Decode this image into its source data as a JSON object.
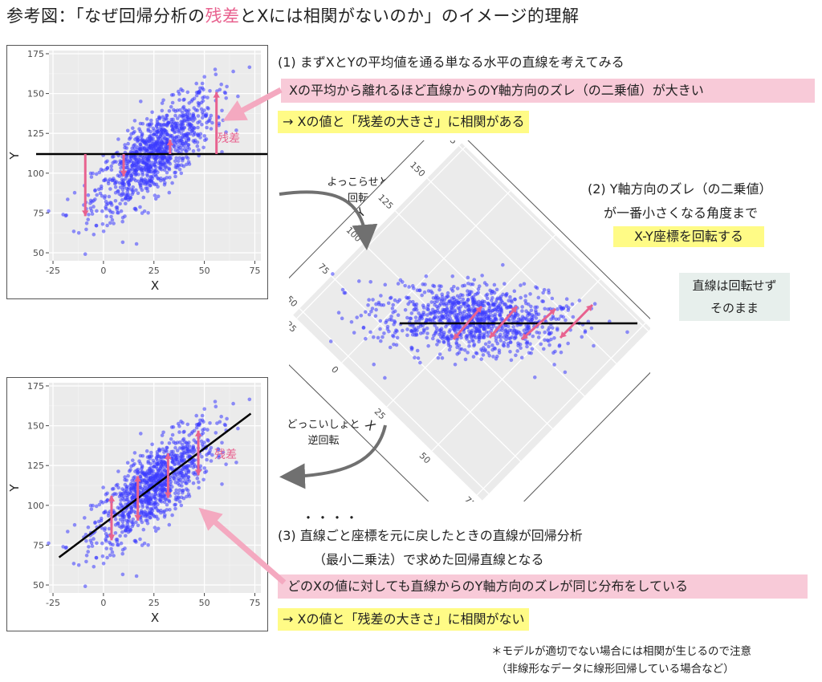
{
  "title": {
    "prefix": "参考図：「なぜ回帰分析の",
    "highlight": "残差",
    "suffix": "とXには相関がないのか」のイメージ的理解"
  },
  "step1": {
    "heading": "(1) まずXとYの平均値を通る単なる水平の直線を考えてみる",
    "pink_line": "Xの平均から離れるほど直線からのY軸方向のズレ（の二乗値）が大きい",
    "yellow_line": "→ Xの値と「残差の大きさ」に相関がある"
  },
  "arrow1_label": [
    "よっこらせと",
    "回転"
  ],
  "step2": {
    "line1": "(2) Y軸方向のズレ（の二乗値）",
    "line2": "が一番小さくなる角度まで",
    "line3": "X-Y座標を回転する"
  },
  "grey_box": [
    "直線は回転せず",
    "そのまま"
  ],
  "arrow2_label": [
    "どっこいしょと",
    "逆回転"
  ],
  "dots": "・・・・",
  "step3": {
    "line1": "(3) 直線ごと座標を元に戻したときの直線が回帰分析",
    "line2": "（最小二乗法）で求めた回帰直線となる",
    "pink_line": "どのXの値に対しても直線からのY軸方向のズレが同じ分布をしている",
    "yellow_line": "→ Xの値と「残差の大きさ」に相関がない"
  },
  "footnote": [
    "＊モデルが適切でない場合には相関が生じるので注意",
    "（非線形なデータに線形回帰している場合など）"
  ],
  "plot_labels": {
    "residual": "残差",
    "x_axis": "X",
    "y_axis": "Y"
  },
  "colors": {
    "points": "#3b3bff",
    "pink": "#e8628f",
    "pink_light": "#f8cad8",
    "yellow": "#fffb86",
    "panel_bg": "#ebebeb"
  },
  "chart_data": {
    "type": "scatter",
    "xlabel": "X",
    "ylabel": "Y",
    "xlim": [
      -27,
      78
    ],
    "ylim": [
      45,
      177
    ],
    "x_ticks": [
      -25,
      0,
      25,
      50,
      75
    ],
    "y_ticks": [
      50,
      75,
      100,
      125,
      150,
      175
    ],
    "x_tick_labels": [
      "-25",
      "0",
      "25",
      "50",
      "75"
    ],
    "y_tick_labels": [
      "50",
      "75",
      "100",
      "125",
      "150",
      "175"
    ],
    "x_mean": 25,
    "y_mean": 112,
    "slope": 0.95,
    "n_points": 1000,
    "grid": true
  }
}
